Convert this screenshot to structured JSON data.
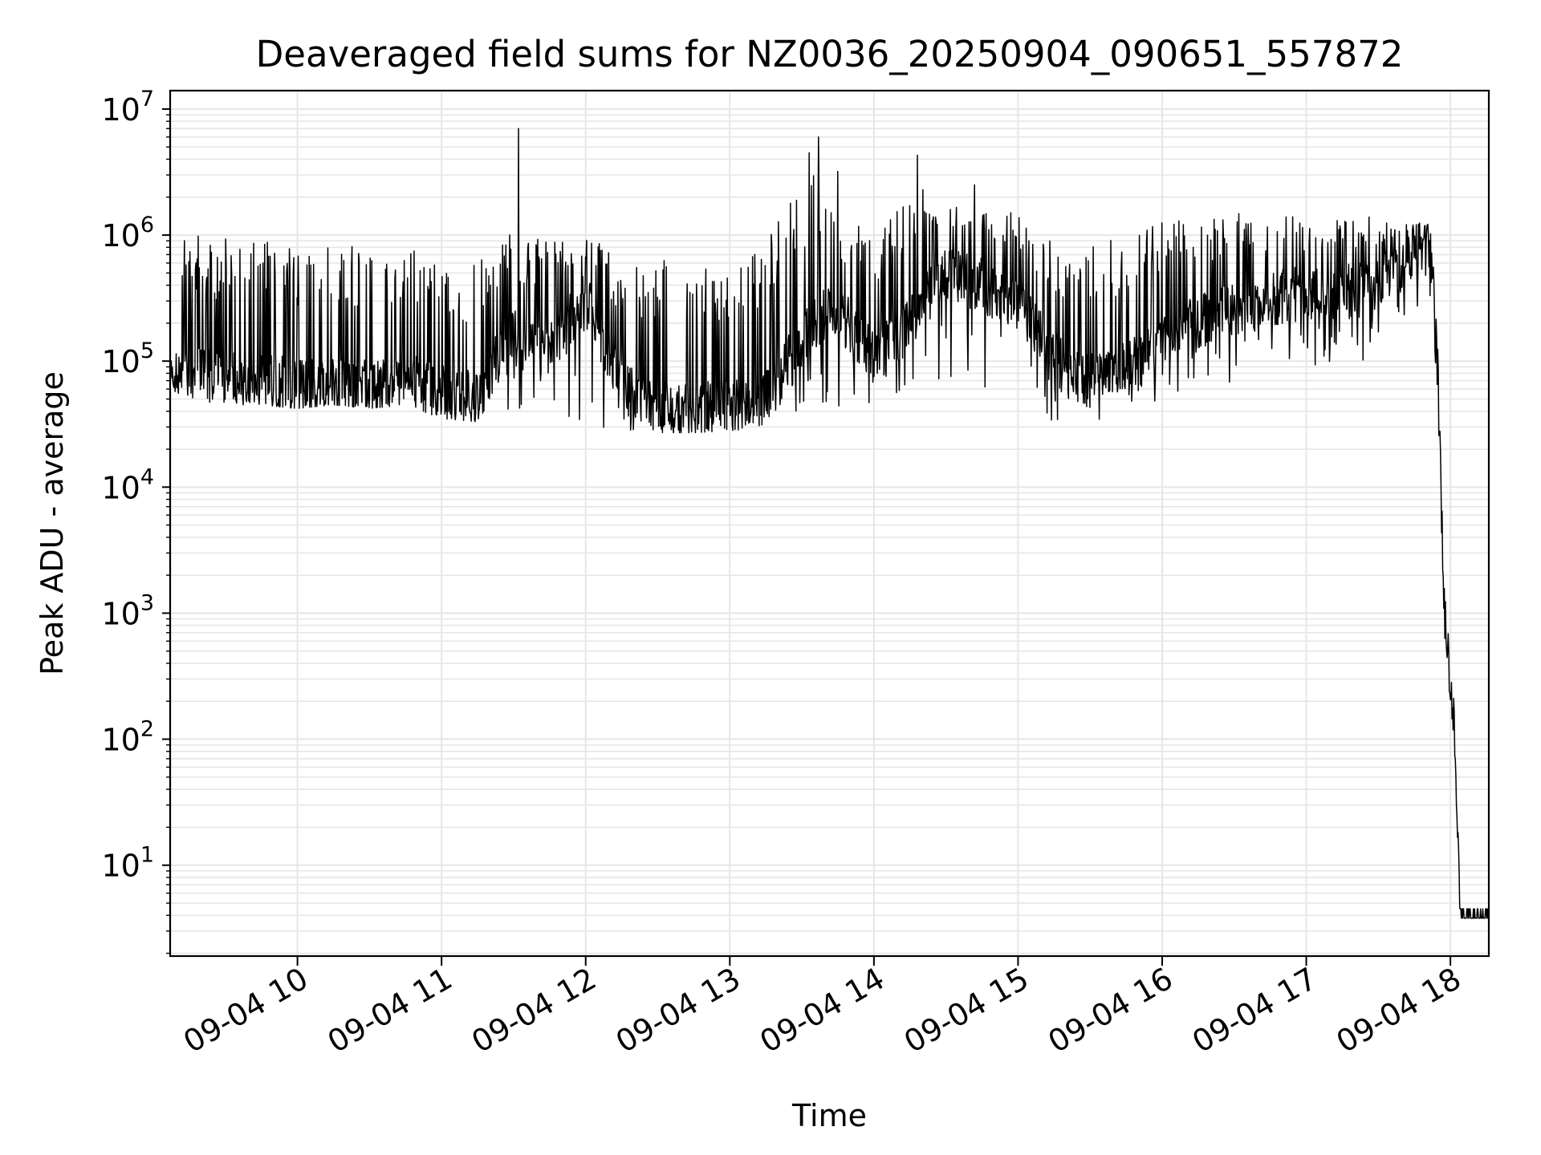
{
  "chart_data": {
    "type": "line",
    "title": "Deaveraged field sums for NZ0036_20250904_090651_557872",
    "xlabel": "Time",
    "ylabel": "Peak ADU - average",
    "yscale": "log",
    "xlim": [
      "09-04 09:07",
      "09-04 18:16"
    ],
    "ylim": [
      1.9,
      14000000
    ],
    "grid": true,
    "line_color": "#000000",
    "grid_color": "#e6e6e6",
    "x_ticks": [
      "09-04 10",
      "09-04 11",
      "09-04 12",
      "09-04 13",
      "09-04 14",
      "09-04 15",
      "09-04 16",
      "09-04 17",
      "09-04 18"
    ],
    "y_ticks": [
      {
        "base": "10",
        "exp": "1"
      },
      {
        "base": "10",
        "exp": "2"
      },
      {
        "base": "10",
        "exp": "3"
      },
      {
        "base": "10",
        "exp": "4"
      },
      {
        "base": "10",
        "exp": "5"
      },
      {
        "base": "10",
        "exp": "6"
      },
      {
        "base": "10",
        "exp": "7"
      }
    ],
    "series": [
      {
        "name": "",
        "x": [
          "09:07",
          "09:15",
          "09:30",
          "09:45",
          "10:00",
          "10:15",
          "10:30",
          "10:45",
          "11:00",
          "11:15",
          "11:20",
          "11:30",
          "11:45",
          "12:00",
          "12:15",
          "12:30",
          "12:45",
          "13:00",
          "13:15",
          "13:25",
          "13:35",
          "13:45",
          "14:00",
          "14:15",
          "14:30",
          "14:45",
          "15:00",
          "15:15",
          "15:30",
          "15:45",
          "16:00",
          "16:15",
          "16:30",
          "16:45",
          "17:00",
          "17:15",
          "17:30",
          "17:45",
          "17:52",
          "17:55",
          "17:57",
          "17:58",
          "18:00",
          "18:02",
          "18:04",
          "18:06",
          "18:16"
        ],
        "base": [
          90000,
          80000,
          70000,
          75000,
          60000,
          65000,
          60000,
          70000,
          55000,
          50000,
          80000,
          150000,
          120000,
          300000,
          60000,
          45000,
          40000,
          45000,
          50000,
          100000,
          200000,
          250000,
          100000,
          200000,
          500000,
          400000,
          300000,
          100000,
          70000,
          90000,
          150000,
          200000,
          250000,
          300000,
          350000,
          350000,
          400000,
          700000,
          800000,
          50000,
          2000,
          800,
          300,
          100,
          4,
          4,
          4
        ],
        "peak": [
          800000,
          1000000,
          1000000,
          1000000,
          900000,
          900000,
          900000,
          900000,
          700000,
          600000,
          1100000,
          1000000,
          900000,
          1000000,
          700000,
          700000,
          700000,
          750000,
          800000,
          3000000,
          3000000,
          1500000,
          1000000,
          2500000,
          2000000,
          1500000,
          1800000,
          900000,
          900000,
          1000000,
          1300000,
          1400000,
          1500000,
          1500000,
          1400000,
          1500000,
          1400000,
          1300000,
          1200000,
          100000,
          5000,
          1300,
          500,
          200,
          4.5,
          4.5,
          4.5
        ],
        "low": [
          60000,
          50000,
          45000,
          45000,
          42000,
          45000,
          42000,
          45000,
          35000,
          33000,
          40000,
          35000,
          35000,
          30000,
          27000,
          27000,
          27000,
          28000,
          30000,
          40000,
          40000,
          35000,
          40000,
          60000,
          70000,
          60000,
          50000,
          32000,
          30000,
          40000,
          50000,
          60000,
          60000,
          70000,
          80000,
          90000,
          100000,
          200000,
          300000,
          30000,
          800,
          400,
          200,
          60,
          3.8,
          3.8,
          3.8
        ],
        "spikes": [
          {
            "x": "11:32",
            "y": 7000000
          },
          {
            "x": "13:37",
            "y": 6000000
          },
          {
            "x": "13:33",
            "y": 4500000
          },
          {
            "x": "14:18",
            "y": 4300000
          },
          {
            "x": "13:45",
            "y": 3200000
          },
          {
            "x": "14:42",
            "y": 2500000
          }
        ]
      }
    ]
  }
}
